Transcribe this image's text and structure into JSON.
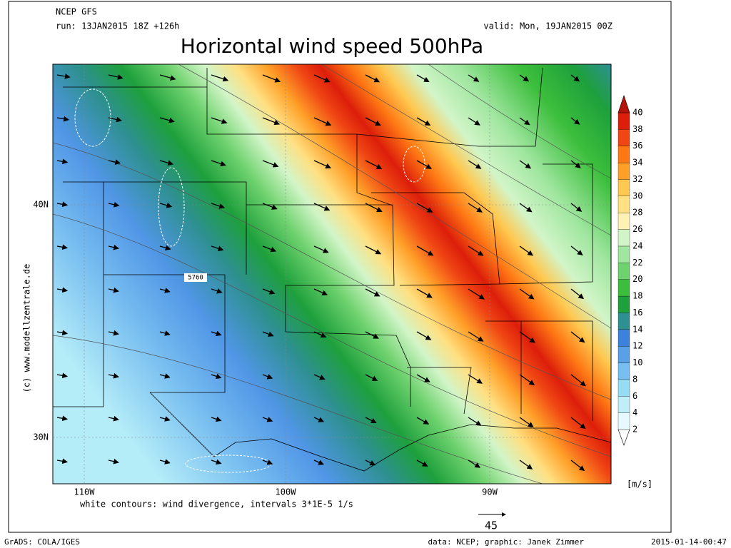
{
  "header": {
    "model": "NCEP GFS",
    "run": "run: 13JAN2015 18Z +126h",
    "valid": "valid: Mon, 19JAN2015 00Z",
    "title": "Horizontal wind speed 500hPa"
  },
  "map": {
    "lat_labels": [
      "40N",
      "30N"
    ],
    "lon_labels": [
      "110W",
      "100W",
      "90W"
    ],
    "credit": "(c) www.modellzentrale.de",
    "contour_label": "5760",
    "note": "white contours: wind divergence, intervals 3*1E-5 1/s",
    "arrow_scale": "45"
  },
  "colorbar": {
    "unit": "[m/s]",
    "labels": [
      2,
      4,
      6,
      8,
      10,
      12,
      14,
      16,
      18,
      20,
      22,
      24,
      26,
      28,
      30,
      32,
      34,
      36,
      38,
      40
    ],
    "colors": [
      "#ffffff",
      "#e6f9ff",
      "#c0eef8",
      "#96dcf2",
      "#78bef0",
      "#5aa0e8",
      "#3c82dc",
      "#2e9090",
      "#1ea03c",
      "#3cbe3c",
      "#6ed26e",
      "#a0e6a0",
      "#d2f5c8",
      "#fff0b4",
      "#ffe082",
      "#ffc850",
      "#ffa028",
      "#ff7814",
      "#f04614",
      "#dc1e0a",
      "#b4140a"
    ]
  },
  "footer": {
    "left": "GrADS: COLA/IGES",
    "center": "data: NCEP; graphic: Janek Zimmer",
    "right": "2015-01-14-00:47"
  }
}
